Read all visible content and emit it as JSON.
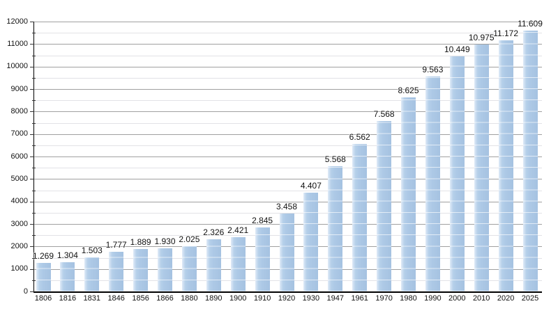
{
  "chart_data": {
    "type": "bar",
    "title": "",
    "categories": [
      "1806",
      "1816",
      "1831",
      "1846",
      "1856",
      "1866",
      "1880",
      "1890",
      "1900",
      "1910",
      "1920",
      "1930",
      "1947",
      "1961",
      "1970",
      "1980",
      "1990",
      "2000",
      "2010",
      "2020",
      "2025"
    ],
    "values": [
      1269,
      1304,
      1503,
      1777,
      1889,
      1930,
      2025,
      2326,
      2421,
      2845,
      3458,
      4407,
      5568,
      6562,
      7568,
      8625,
      9563,
      10449,
      10975,
      11172,
      11609
    ],
    "value_labels": [
      "1.269",
      "1.304",
      "1.503",
      "1.777",
      "1.889",
      "1.930",
      "2.025",
      "2.326",
      "2.421",
      "2.845",
      "3.458",
      "4.407",
      "5.568",
      "6.562",
      "7.568",
      "8.625",
      "9.563",
      "10.449",
      "10.975",
      "11.172",
      "11.609"
    ],
    "xlabel": "",
    "ylabel": "",
    "ylim": [
      0,
      12000
    ],
    "y_major_step": 1000,
    "y_minor_step": 500,
    "y_tick_labels": [
      "0",
      "1000",
      "2000",
      "3000",
      "4000",
      "5000",
      "6000",
      "7000",
      "8000",
      "9000",
      "10000",
      "11000",
      "12000"
    ],
    "grid": "on",
    "legend": "none",
    "colors": {
      "bar_fill": "#adc9e6",
      "bar_highlight": "#e0ebf7",
      "grid_major": "#a0a0a0",
      "grid_minor": "#e2e2e6",
      "grid_over_bars": "rgba(255,255,255,0.65)",
      "axis": "#000000",
      "text": "#111111",
      "background": "#ffffff"
    }
  }
}
